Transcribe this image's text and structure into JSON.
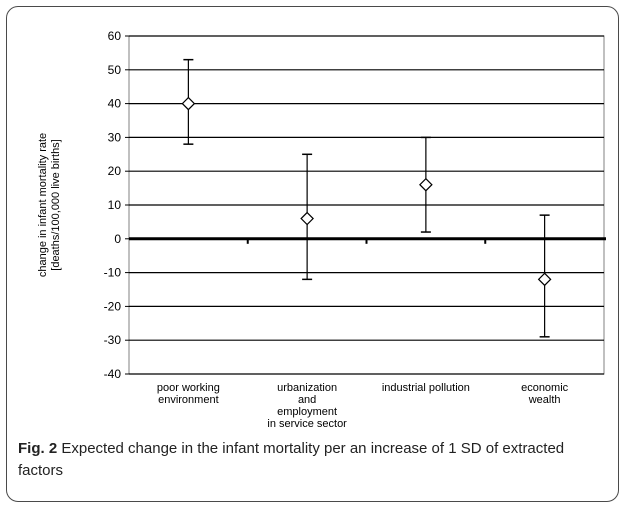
{
  "chart_data": {
    "type": "errorbar",
    "categories": [
      "poor working environment",
      "urbanization and employment in service sector",
      "industrial pollution",
      "economic wealth"
    ],
    "category_label_lines": [
      [
        "poor working",
        "environment"
      ],
      [
        "urbanization",
        "and",
        "employment",
        "in service sector"
      ],
      [
        "industrial pollution"
      ],
      [
        "economic",
        "wealth"
      ]
    ],
    "series": [
      {
        "values": [
          40,
          6,
          16,
          -12
        ],
        "lower": [
          28,
          -12,
          2,
          -29
        ],
        "upper": [
          53,
          25,
          30,
          7
        ]
      }
    ],
    "ylabel_lines": [
      "change in infant mortality rate",
      "[deaths/100,000 live births]"
    ],
    "ylim": [
      -40,
      60
    ],
    "yticks": [
      60,
      50,
      40,
      30,
      20,
      10,
      0,
      -10,
      -20,
      -30,
      -40
    ],
    "grid": true,
    "legend": "none"
  },
  "caption": {
    "label": "Fig. 2",
    "text": "Expected change in the infant mortality per an increase of 1 SD of extracted factors"
  },
  "colors": {
    "line": "#000000",
    "grid": "#000000",
    "frame": "#4a4a4a"
  }
}
